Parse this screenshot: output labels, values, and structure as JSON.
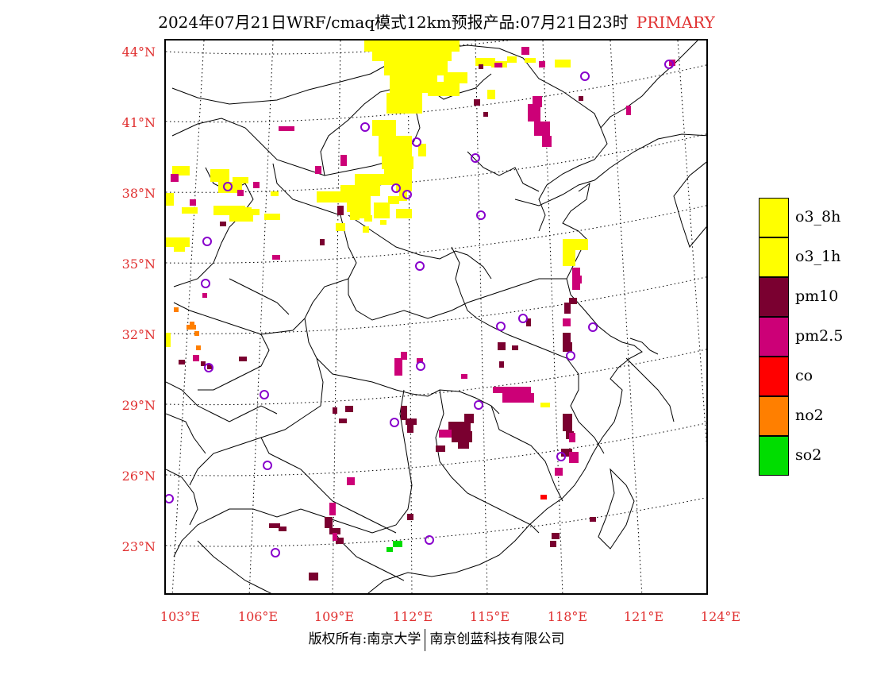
{
  "header": {
    "title": "2024年07月21日WRF/cmaq模式12km预报产品:07月21日23时",
    "category": "PRIMARY"
  },
  "colors": {
    "o3_8h": "#ffff00",
    "o3_1h": "#ffff00",
    "pm10": "#7a0030",
    "pm25": "#cc0077",
    "co": "#ff0000",
    "no2": "#ff7f00",
    "so2": "#00dd00",
    "label_red": "#e03030",
    "station_ring": "#8800cc"
  },
  "axes": {
    "lat_labels": [
      "44°N",
      "41°N",
      "38°N",
      "35°N",
      "32°N",
      "29°N",
      "26°N",
      "23°N"
    ],
    "lon_labels": [
      "103°E",
      "106°E",
      "109°E",
      "112°E",
      "115°E",
      "118°E",
      "121°E",
      "124°E"
    ]
  },
  "legend": [
    {
      "key": "o3_8h",
      "label": "o3_8h",
      "color": "#ffff00"
    },
    {
      "key": "o3_1h",
      "label": "o3_1h",
      "color": "#ffff00"
    },
    {
      "key": "pm10",
      "label": "pm10",
      "color": "#7a0030"
    },
    {
      "key": "pm25",
      "label": "pm2.5",
      "color": "#cc0077"
    },
    {
      "key": "co",
      "label": "co",
      "color": "#ff0000"
    },
    {
      "key": "no2",
      "label": "no2",
      "color": "#ff7f00"
    },
    {
      "key": "so2",
      "label": "so2",
      "color": "#00dd00"
    }
  ],
  "credit": {
    "left": "版权所有:南京大学",
    "right": "南京创蓝科技有限公司"
  }
}
